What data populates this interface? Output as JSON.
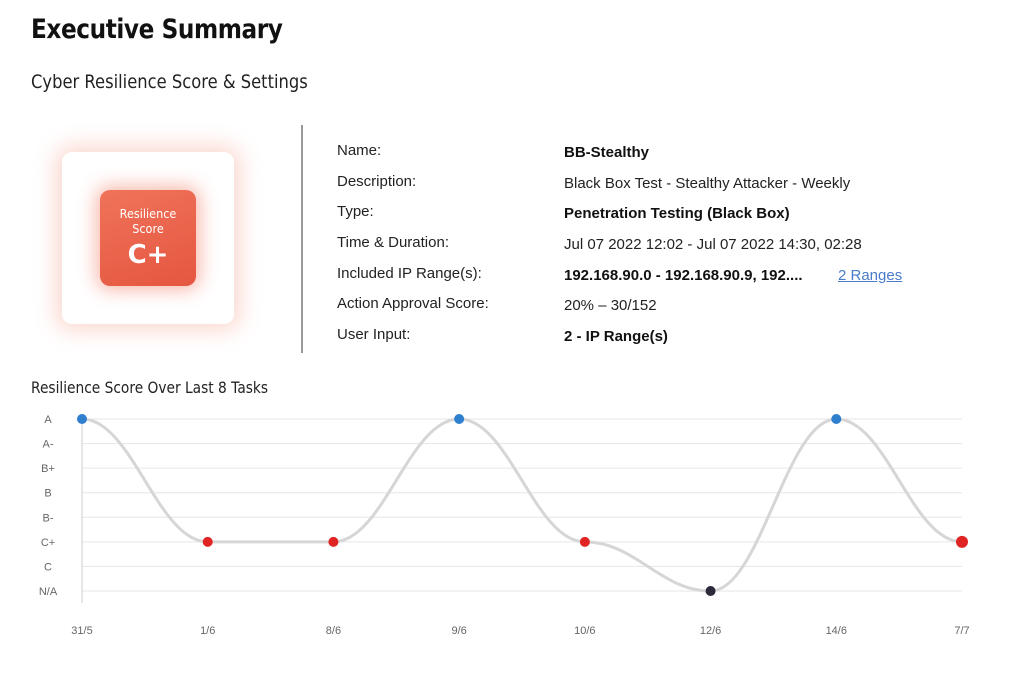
{
  "header": {
    "title": "Executive Summary",
    "subtitle": "Cyber Resilience Score & Settings"
  },
  "badge": {
    "label": "Resilience Score",
    "grade": "C+",
    "accent_color": "#e8604a"
  },
  "settings": {
    "name_label": "Name:",
    "name_value": "BB-Stealthy",
    "description_label": "Description:",
    "description_value": "Black Box Test - Stealthy Attacker - Weekly",
    "type_label": "Type:",
    "type_value": "Penetration Testing (Black Box)",
    "time_label": "Time & Duration:",
    "time_value": "Jul 07 2022 12:02 - Jul 07 2022 14:30,  02:28",
    "ip_label": "Included IP Range(s):",
    "ip_value": "192.168.90.0 - 192.168.90.9, 192....",
    "ip_link": "2 Ranges",
    "approval_label": "Action Approval Score:",
    "approval_value": "20% – 30/152",
    "input_label": "User Input:",
    "input_value": "2 - IP Range(s)"
  },
  "chart_data": {
    "type": "line",
    "title": "Resilience Score Over Last 8 Tasks",
    "categories": [
      "31/5",
      "1/6",
      "8/6",
      "9/6",
      "10/6",
      "12/6",
      "14/6",
      "7/7"
    ],
    "y_levels": [
      "A",
      "A-",
      "B+",
      "B",
      "B-",
      "C+",
      "C",
      "N/A"
    ],
    "values": [
      "A",
      "C+",
      "C+",
      "A",
      "C+",
      "N/A",
      "A",
      "C+"
    ],
    "point_colors": {
      "A": "#2f7fcf",
      "C+": "#e02424",
      "N/A": "#2a2a3a"
    },
    "line_color": "#d6d6d6",
    "grid": true
  }
}
